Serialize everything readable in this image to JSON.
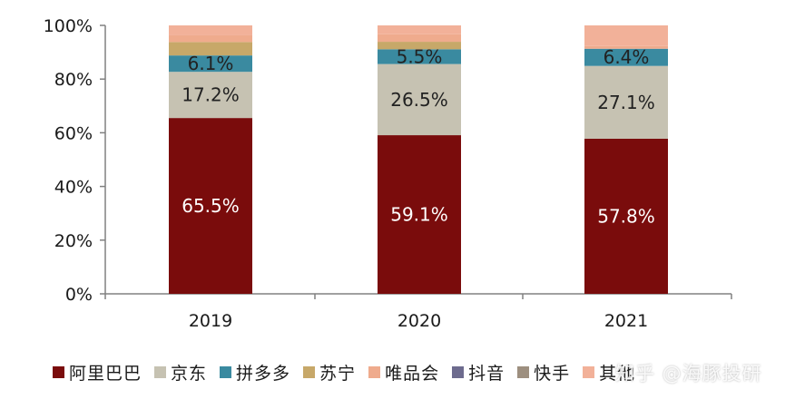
{
  "chart_data": {
    "type": "bar",
    "stacked": true,
    "categories": [
      "2019",
      "2020",
      "2021"
    ],
    "y_ticks": [
      "0%",
      "20%",
      "40%",
      "60%",
      "80%",
      "100%"
    ],
    "ylim": [
      0,
      100
    ],
    "series": [
      {
        "name": "阿里巴巴",
        "color": "#7a0c0c",
        "values": [
          65.5,
          59.1,
          57.8
        ],
        "labels": [
          "65.5%",
          "59.1%",
          "57.8%"
        ],
        "label_color": "#ffffff"
      },
      {
        "name": "京东",
        "color": "#c6c2b2",
        "values": [
          17.2,
          26.5,
          27.1
        ],
        "labels": [
          "17.2%",
          "26.5%",
          "27.1%"
        ],
        "label_color": "#222222"
      },
      {
        "name": "拼多多",
        "color": "#3a8aa0",
        "values": [
          6.1,
          5.5,
          6.4
        ],
        "labels": [
          "6.1%",
          "5.5%",
          "6.4%"
        ],
        "label_color": "#222222"
      },
      {
        "name": "苏宁",
        "color": "#c7a869",
        "values": [
          5.0,
          2.8,
          0.0
        ],
        "labels": [
          "",
          "",
          ""
        ],
        "label_color": "#222222"
      },
      {
        "name": "唯品会",
        "color": "#efab8d",
        "values": [
          2.5,
          2.8,
          1.0
        ],
        "labels": [
          "",
          "",
          ""
        ],
        "label_color": "#222222"
      },
      {
        "name": "抖音",
        "color": "#6d6b8e",
        "values": [
          0.0,
          0.0,
          0.0
        ],
        "labels": [
          "",
          "",
          ""
        ],
        "label_color": "#222222"
      },
      {
        "name": "快手",
        "color": "#9d8f7f",
        "values": [
          0.0,
          0.0,
          0.0
        ],
        "labels": [
          "",
          "",
          ""
        ],
        "label_color": "#222222"
      },
      {
        "name": "其他",
        "color": "#f2b199",
        "values": [
          3.7,
          3.3,
          7.7
        ],
        "labels": [
          "",
          "",
          ""
        ],
        "label_color": "#222222"
      }
    ],
    "legend_position": "bottom",
    "grid": false
  },
  "watermark": "知乎 @海豚投研"
}
